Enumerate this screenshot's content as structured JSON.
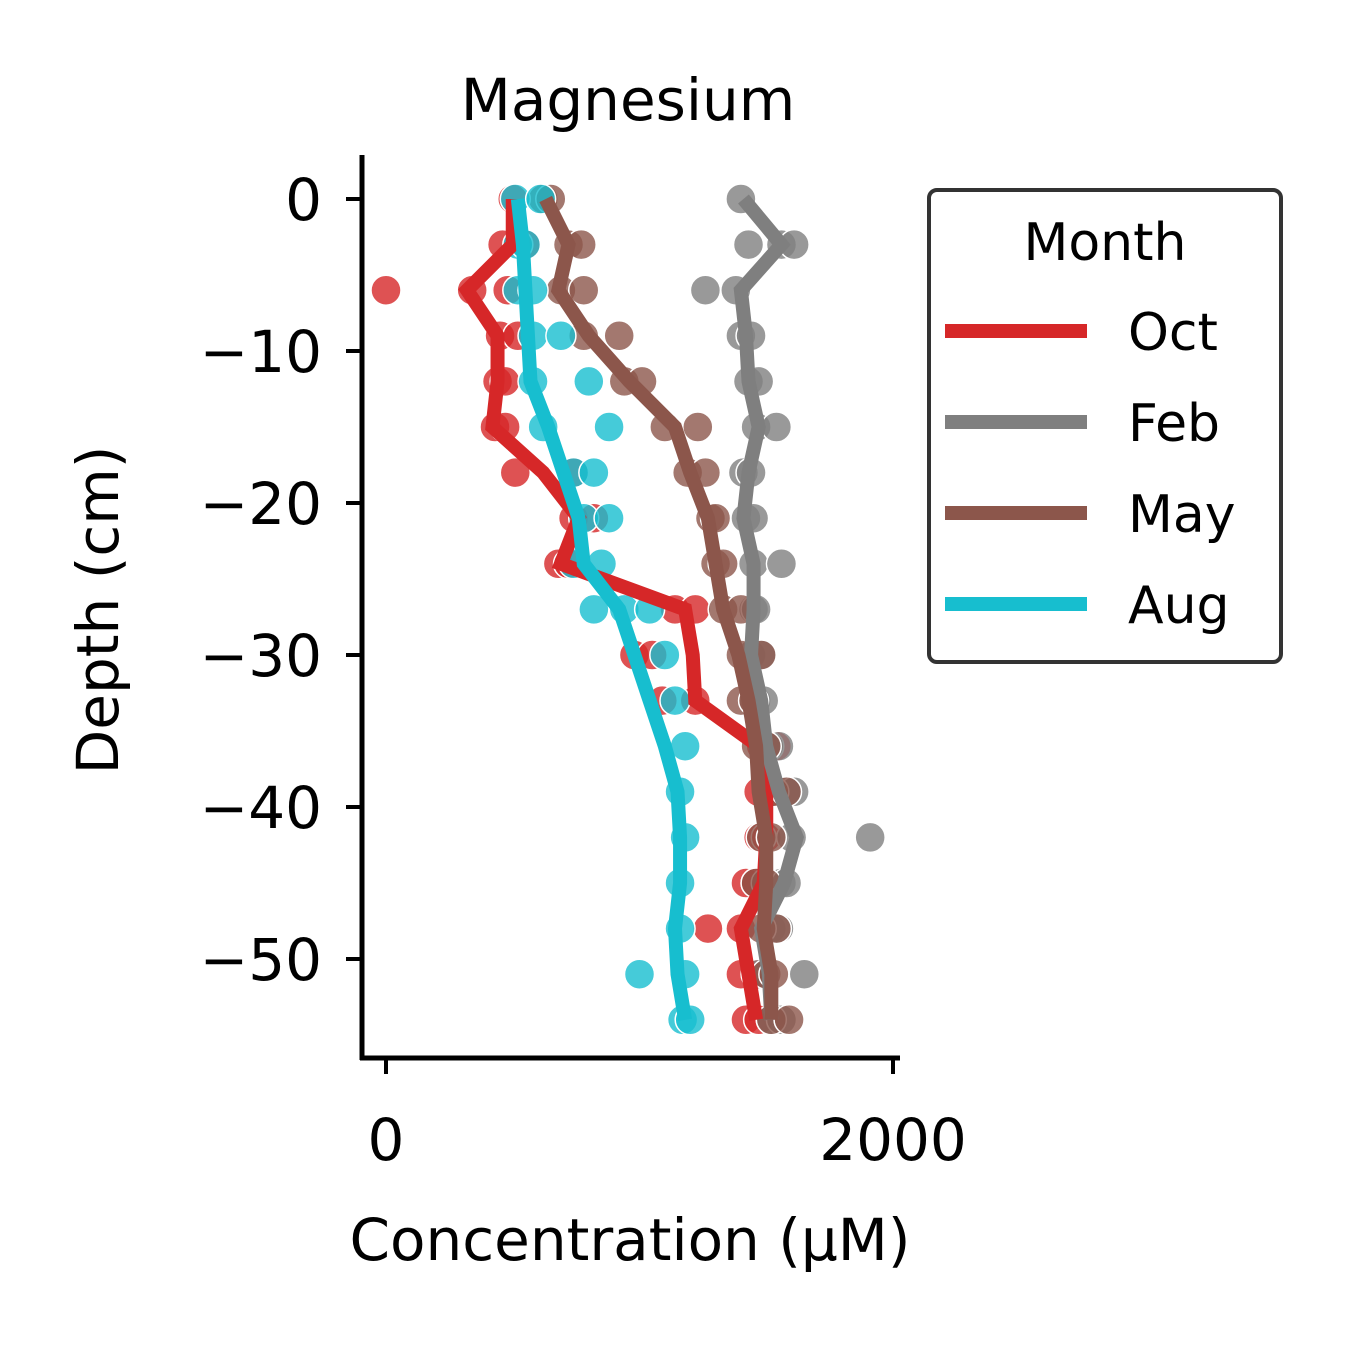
{
  "chart_data": {
    "type": "line",
    "title": "Magnesium",
    "xlabel": "Concentration (μM)",
    "ylabel": "Depth (cm)",
    "xlim": [
      -100,
      2000
    ],
    "ylim": [
      -57,
      3
    ],
    "xticks": [
      0,
      2000
    ],
    "xtick_labels": [
      "0",
      "2000"
    ],
    "yticks": [
      0,
      -10,
      -20,
      -30,
      -40,
      -50
    ],
    "ytick_labels": [
      "0",
      "−10",
      "−20",
      "−30",
      "−40",
      "−50"
    ],
    "grid": false,
    "legend": {
      "title": "Month",
      "placement": "upper right, outside plot"
    },
    "series": [
      {
        "name": "Oct",
        "color": "#d62728",
        "line": [
          [
            500,
            0
          ],
          [
            500,
            -3
          ],
          [
            320,
            -6
          ],
          [
            440,
            -9
          ],
          [
            440,
            -12
          ],
          [
            420,
            -15
          ],
          [
            620,
            -18
          ],
          [
            760,
            -21
          ],
          [
            690,
            -24
          ],
          [
            1180,
            -27
          ],
          [
            1210,
            -30
          ],
          [
            1220,
            -33
          ],
          [
            1470,
            -36
          ],
          [
            1500,
            -39
          ],
          [
            1500,
            -42
          ],
          [
            1490,
            -45
          ],
          [
            1400,
            -48
          ],
          [
            1430,
            -51
          ],
          [
            1460,
            -54
          ]
        ],
        "points": [
          [
            500,
            0
          ],
          [
            460,
            -3
          ],
          [
            550,
            -3
          ],
          [
            0,
            -6
          ],
          [
            480,
            -6
          ],
          [
            340,
            -6
          ],
          [
            450,
            -9
          ],
          [
            520,
            -9
          ],
          [
            440,
            -12
          ],
          [
            470,
            -12
          ],
          [
            430,
            -15
          ],
          [
            470,
            -15
          ],
          [
            510,
            -18
          ],
          [
            740,
            -18
          ],
          [
            740,
            -21
          ],
          [
            820,
            -21
          ],
          [
            680,
            -24
          ],
          [
            720,
            -24
          ],
          [
            1140,
            -27
          ],
          [
            1220,
            -27
          ],
          [
            980,
            -30
          ],
          [
            1050,
            -30
          ],
          [
            1090,
            -33
          ],
          [
            1220,
            -33
          ],
          [
            1480,
            -36
          ],
          [
            1540,
            -36
          ],
          [
            1470,
            -39
          ],
          [
            1520,
            -39
          ],
          [
            1470,
            -42
          ],
          [
            1500,
            -42
          ],
          [
            1420,
            -45
          ],
          [
            1460,
            -45
          ],
          [
            1270,
            -48
          ],
          [
            1400,
            -48
          ],
          [
            1400,
            -51
          ],
          [
            1460,
            -51
          ],
          [
            1420,
            -54
          ],
          [
            1470,
            -54
          ]
        ]
      },
      {
        "name": "Feb",
        "color": "#7f7f7f",
        "line": [
          [
            1410,
            0
          ],
          [
            1560,
            -3
          ],
          [
            1400,
            -6
          ],
          [
            1420,
            -9
          ],
          [
            1430,
            -12
          ],
          [
            1470,
            -15
          ],
          [
            1430,
            -18
          ],
          [
            1410,
            -21
          ],
          [
            1450,
            -24
          ],
          [
            1450,
            -27
          ],
          [
            1440,
            -30
          ],
          [
            1480,
            -33
          ],
          [
            1500,
            -36
          ],
          [
            1550,
            -39
          ],
          [
            1620,
            -42
          ],
          [
            1570,
            -45
          ],
          [
            1480,
            -48
          ],
          [
            1510,
            -51
          ],
          [
            1520,
            -54
          ]
        ],
        "points": [
          [
            1400,
            0
          ],
          [
            1430,
            -3
          ],
          [
            1560,
            -3
          ],
          [
            1610,
            -3
          ],
          [
            1260,
            -6
          ],
          [
            1380,
            -6
          ],
          [
            1400,
            -9
          ],
          [
            1440,
            -9
          ],
          [
            1430,
            -12
          ],
          [
            1470,
            -12
          ],
          [
            1460,
            -15
          ],
          [
            1540,
            -15
          ],
          [
            1410,
            -18
          ],
          [
            1440,
            -18
          ],
          [
            1420,
            -21
          ],
          [
            1450,
            -21
          ],
          [
            1450,
            -24
          ],
          [
            1560,
            -24
          ],
          [
            1450,
            -27
          ],
          [
            1460,
            -27
          ],
          [
            1440,
            -30
          ],
          [
            1480,
            -30
          ],
          [
            1460,
            -33
          ],
          [
            1490,
            -33
          ],
          [
            1510,
            -36
          ],
          [
            1550,
            -36
          ],
          [
            1580,
            -39
          ],
          [
            1610,
            -39
          ],
          [
            1600,
            -42
          ],
          [
            1910,
            -42
          ],
          [
            1560,
            -45
          ],
          [
            1580,
            -45
          ],
          [
            1520,
            -48
          ],
          [
            1550,
            -48
          ],
          [
            1470,
            -51
          ],
          [
            1650,
            -51
          ],
          [
            1520,
            -54
          ],
          [
            1560,
            -54
          ]
        ]
      },
      {
        "name": "May",
        "color": "#8c564b",
        "line": [
          [
            630,
            0
          ],
          [
            720,
            -3
          ],
          [
            680,
            -6
          ],
          [
            800,
            -9
          ],
          [
            960,
            -12
          ],
          [
            1140,
            -15
          ],
          [
            1200,
            -18
          ],
          [
            1270,
            -21
          ],
          [
            1300,
            -24
          ],
          [
            1330,
            -27
          ],
          [
            1390,
            -30
          ],
          [
            1430,
            -33
          ],
          [
            1460,
            -36
          ],
          [
            1470,
            -39
          ],
          [
            1500,
            -42
          ],
          [
            1500,
            -45
          ],
          [
            1490,
            -48
          ],
          [
            1520,
            -51
          ],
          [
            1520,
            -54
          ]
        ],
        "points": [
          [
            620,
            0
          ],
          [
            650,
            0
          ],
          [
            720,
            -3
          ],
          [
            770,
            -3
          ],
          [
            690,
            -6
          ],
          [
            780,
            -6
          ],
          [
            780,
            -9
          ],
          [
            920,
            -9
          ],
          [
            940,
            -12
          ],
          [
            1010,
            -12
          ],
          [
            1100,
            -15
          ],
          [
            1230,
            -15
          ],
          [
            1190,
            -18
          ],
          [
            1260,
            -18
          ],
          [
            1280,
            -21
          ],
          [
            1300,
            -21
          ],
          [
            1300,
            -24
          ],
          [
            1330,
            -24
          ],
          [
            1330,
            -27
          ],
          [
            1400,
            -27
          ],
          [
            1400,
            -30
          ],
          [
            1480,
            -30
          ],
          [
            1400,
            -33
          ],
          [
            1450,
            -33
          ],
          [
            1460,
            -36
          ],
          [
            1500,
            -36
          ],
          [
            1530,
            -39
          ],
          [
            1580,
            -39
          ],
          [
            1480,
            -42
          ],
          [
            1520,
            -42
          ],
          [
            1500,
            -45
          ],
          [
            1460,
            -45
          ],
          [
            1480,
            -48
          ],
          [
            1540,
            -48
          ],
          [
            1500,
            -51
          ],
          [
            1530,
            -51
          ],
          [
            1520,
            -54
          ],
          [
            1590,
            -54
          ]
        ]
      },
      {
        "name": "Aug",
        "color": "#17becf",
        "line": [
          [
            520,
            0
          ],
          [
            540,
            -3
          ],
          [
            550,
            -6
          ],
          [
            560,
            -9
          ],
          [
            570,
            -12
          ],
          [
            640,
            -15
          ],
          [
            700,
            -18
          ],
          [
            760,
            -21
          ],
          [
            780,
            -24
          ],
          [
            920,
            -27
          ],
          [
            980,
            -30
          ],
          [
            1040,
            -33
          ],
          [
            1100,
            -36
          ],
          [
            1150,
            -39
          ],
          [
            1160,
            -42
          ],
          [
            1160,
            -45
          ],
          [
            1140,
            -48
          ],
          [
            1150,
            -51
          ],
          [
            1180,
            -54
          ]
        ],
        "points": [
          [
            510,
            0
          ],
          [
            610,
            0
          ],
          [
            520,
            -3
          ],
          [
            550,
            -3
          ],
          [
            520,
            -6
          ],
          [
            580,
            -6
          ],
          [
            580,
            -9
          ],
          [
            690,
            -9
          ],
          [
            580,
            -12
          ],
          [
            800,
            -12
          ],
          [
            620,
            -15
          ],
          [
            880,
            -15
          ],
          [
            740,
            -18
          ],
          [
            820,
            -18
          ],
          [
            780,
            -21
          ],
          [
            880,
            -21
          ],
          [
            740,
            -24
          ],
          [
            850,
            -24
          ],
          [
            820,
            -27
          ],
          [
            940,
            -27
          ],
          [
            1040,
            -27
          ],
          [
            1100,
            -30
          ],
          [
            1140,
            -33
          ],
          [
            1180,
            -36
          ],
          [
            1160,
            -39
          ],
          [
            1180,
            -42
          ],
          [
            1160,
            -45
          ],
          [
            1160,
            -48
          ],
          [
            1000,
            -51
          ],
          [
            1180,
            -51
          ],
          [
            1170,
            -54
          ],
          [
            1200,
            -54
          ]
        ]
      }
    ]
  }
}
